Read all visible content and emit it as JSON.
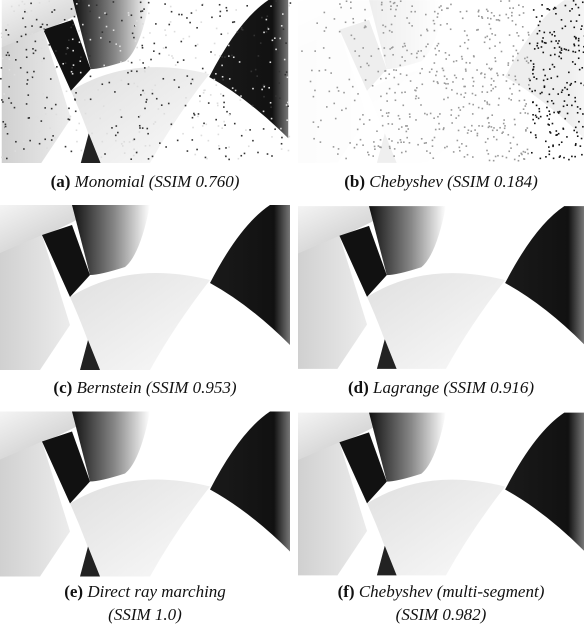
{
  "figure": {
    "panels": [
      {
        "label": "(a)",
        "caption": [
          "Monomial (SSIM 0.760)"
        ]
      },
      {
        "label": "(b)",
        "caption": [
          "Chebyshev (SSIM 0.184)"
        ]
      },
      {
        "label": "(c)",
        "caption": [
          "Bernstein (SSIM 0.953)"
        ]
      },
      {
        "label": "(d)",
        "caption": [
          "Lagrange (SSIM 0.916)"
        ]
      },
      {
        "label": "(e)",
        "caption": [
          "Direct ray marching",
          "(SSIM 1.0)"
        ]
      },
      {
        "label": "(f)",
        "caption": [
          "Chebyshev (multi-segment)",
          "(SSIM 0.982)"
        ]
      }
    ]
  }
}
